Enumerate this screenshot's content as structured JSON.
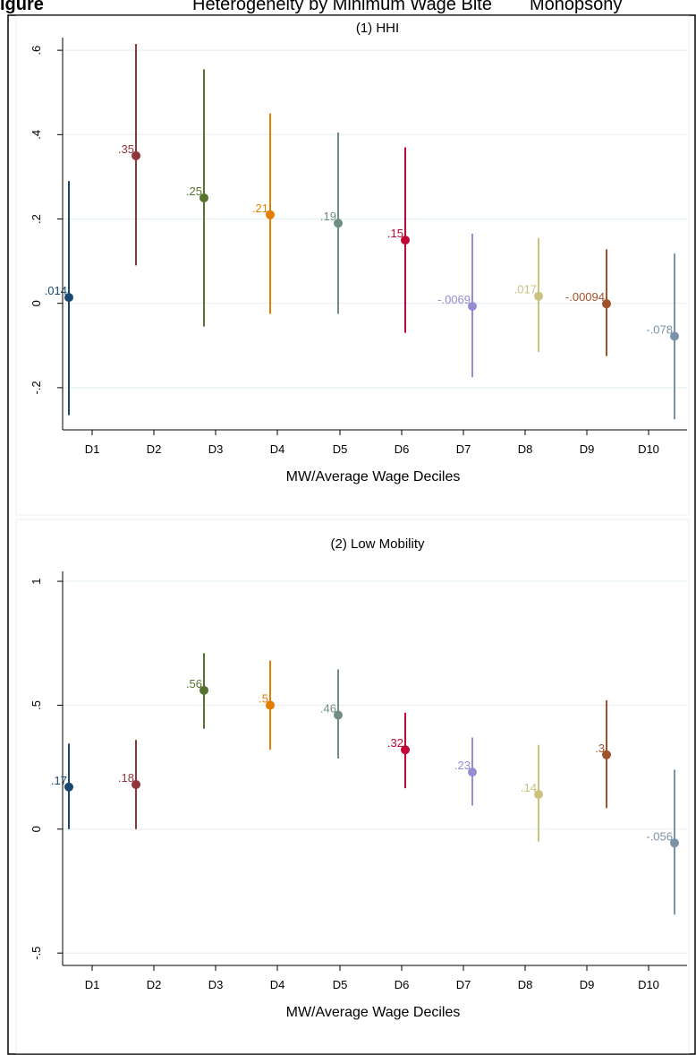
{
  "header": {
    "figure_label": "igure",
    "cut_text_1": "Heterogeneity by Minimum Wage Bite",
    "cut_text_2": "Monopsony"
  },
  "chart_data": [
    {
      "type": "scatter",
      "title": "(1) HHI",
      "xlabel": "MW/Average Wage Deciles",
      "ylabel": "",
      "categories": [
        "D1",
        "D2",
        "D3",
        "D4",
        "D5",
        "D6",
        "D7",
        "D8",
        "D9",
        "D10"
      ],
      "ylim": [
        -0.3,
        0.63
      ],
      "yticks": [
        -0.2,
        0,
        0.2,
        0.4,
        0.6
      ],
      "ytick_labels": [
        "-.2",
        "0",
        ".2",
        ".4",
        ".6"
      ],
      "grid": true,
      "points": [
        {
          "category": "D1",
          "estimate": 0.014,
          "label": ".014",
          "ci": [
            -0.265,
            0.29
          ],
          "color": "#1a476f"
        },
        {
          "category": "D2",
          "estimate": 0.35,
          "label": ".35",
          "ci": [
            0.09,
            0.615
          ],
          "color": "#90353b"
        },
        {
          "category": "D3",
          "estimate": 0.25,
          "label": ".25",
          "ci": [
            -0.055,
            0.555
          ],
          "color": "#55752f"
        },
        {
          "category": "D4",
          "estimate": 0.21,
          "label": ".21",
          "ci": [
            -0.025,
            0.45
          ],
          "color": "#e37e00"
        },
        {
          "category": "D5",
          "estimate": 0.19,
          "label": ".19",
          "ci": [
            -0.025,
            0.405
          ],
          "color": "#6e8e84"
        },
        {
          "category": "D6",
          "estimate": 0.15,
          "label": ".15",
          "ci": [
            -0.07,
            0.37
          ],
          "color": "#c10534"
        },
        {
          "category": "D7",
          "estimate": -0.0069,
          "label": "-.0069",
          "ci": [
            -0.175,
            0.165
          ],
          "color": "#938dd2"
        },
        {
          "category": "D8",
          "estimate": 0.017,
          "label": ".017",
          "ci": [
            -0.115,
            0.155
          ],
          "color": "#cac27e"
        },
        {
          "category": "D9",
          "estimate": -0.00094,
          "label": "-.00094",
          "ci": [
            -0.125,
            0.128
          ],
          "color": "#a0522d"
        },
        {
          "category": "D10",
          "estimate": -0.078,
          "label": "-.078",
          "ci": [
            -0.275,
            0.118
          ],
          "color": "#7b92a8"
        }
      ]
    },
    {
      "type": "scatter",
      "title": "(2) Low Mobility",
      "xlabel": "MW/Average Wage Deciles",
      "ylabel": "",
      "categories": [
        "D1",
        "D2",
        "D3",
        "D4",
        "D5",
        "D6",
        "D7",
        "D8",
        "D9",
        "D10"
      ],
      "ylim": [
        -0.55,
        1.04
      ],
      "yticks": [
        -0.5,
        0,
        0.5,
        1
      ],
      "ytick_labels": [
        "-.5",
        "0",
        ".5",
        "1"
      ],
      "grid": true,
      "points": [
        {
          "category": "D1",
          "estimate": 0.17,
          "label": ".17",
          "ci": [
            0.0,
            0.345
          ],
          "color": "#1a476f"
        },
        {
          "category": "D2",
          "estimate": 0.18,
          "label": ".18",
          "ci": [
            0.0,
            0.36
          ],
          "color": "#90353b"
        },
        {
          "category": "D3",
          "estimate": 0.56,
          "label": ".56",
          "ci": [
            0.405,
            0.71
          ],
          "color": "#55752f"
        },
        {
          "category": "D4",
          "estimate": 0.5,
          "label": ".5",
          "ci": [
            0.32,
            0.68
          ],
          "color": "#e37e00"
        },
        {
          "category": "D5",
          "estimate": 0.46,
          "label": ".46",
          "ci": [
            0.285,
            0.645
          ],
          "color": "#6e8e84"
        },
        {
          "category": "D6",
          "estimate": 0.32,
          "label": ".32",
          "ci": [
            0.165,
            0.47
          ],
          "color": "#c10534"
        },
        {
          "category": "D7",
          "estimate": 0.23,
          "label": ".23",
          "ci": [
            0.095,
            0.37
          ],
          "color": "#938dd2"
        },
        {
          "category": "D8",
          "estimate": 0.14,
          "label": ".14",
          "ci": [
            -0.05,
            0.34
          ],
          "color": "#cac27e"
        },
        {
          "category": "D9",
          "estimate": 0.3,
          "label": ".3",
          "ci": [
            0.085,
            0.52
          ],
          "color": "#a0522d"
        },
        {
          "category": "D10",
          "estimate": -0.056,
          "label": "-.056",
          "ci": [
            -0.345,
            0.24
          ],
          "color": "#7b92a8"
        }
      ]
    }
  ]
}
